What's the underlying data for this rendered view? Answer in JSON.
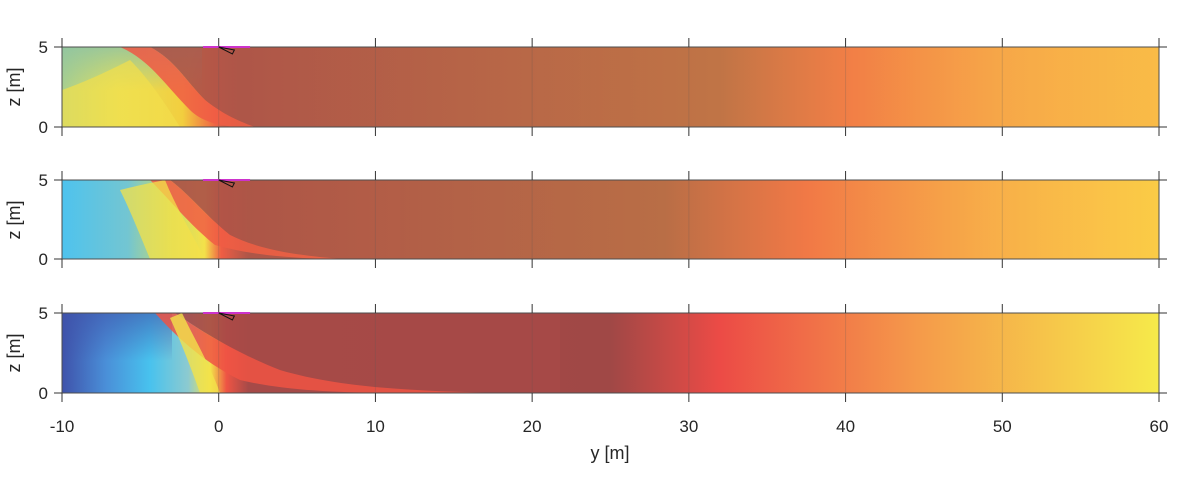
{
  "chart_data": {
    "type": "heatmap",
    "xlabel": "y [m]",
    "ylabel": "z [m]",
    "xlim": [
      -10,
      60
    ],
    "ylim": [
      0,
      5
    ],
    "xticks": [
      "-10",
      "0",
      "10",
      "20",
      "30",
      "40",
      "50",
      "60"
    ],
    "yticks": [
      "0",
      "5"
    ],
    "grid": true,
    "colorbar": "none",
    "colors": {
      "dark_blue": "#3d4fa8",
      "light_blue": "#45bfee",
      "teal": "#7cc6b8",
      "yellow": "#f4e94a",
      "orange": "#f7a64a",
      "red": "#ee4f48",
      "dark_red": "#a14848",
      "magenta_marker": "#cc33cc"
    },
    "panels": [
      {
        "name": "",
        "regions": [
          "teal-green upstream",
          "yellow plume",
          "dark red core",
          "red",
          "orange",
          "yellow-orange downstream"
        ]
      },
      {
        "name": "",
        "regions": [
          "light blue upstream",
          "yellow plume",
          "dark red core",
          "red",
          "orange",
          "yellow downstream"
        ]
      },
      {
        "name": "",
        "regions": [
          "dark blue upstream",
          "light blue",
          "yellow plume",
          "dark red core",
          "red",
          "orange",
          "yellow downstream"
        ]
      }
    ]
  }
}
